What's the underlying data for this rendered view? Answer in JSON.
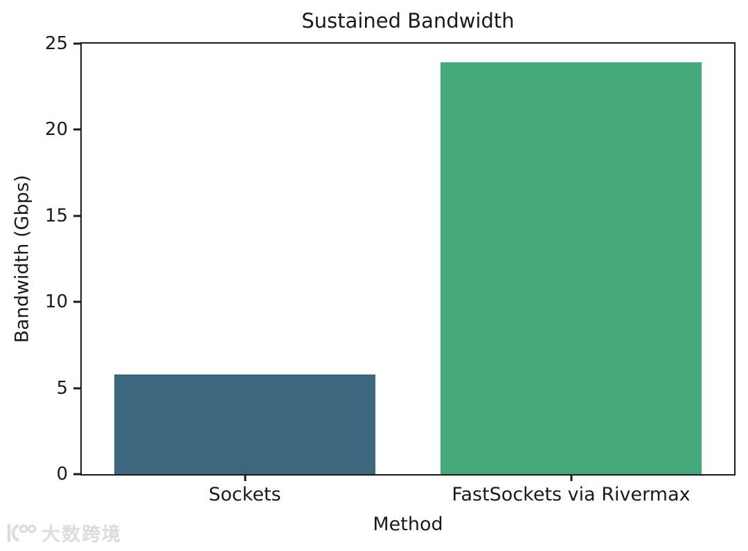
{
  "figure": {
    "background_color": "#ffffff",
    "spine_color": "#1a1a1a",
    "text_color": "#1a1a1a"
  },
  "chart_data": {
    "type": "bar",
    "title": "Sustained Bandwidth",
    "xlabel": "Method",
    "ylabel": "Bandwidth (Gbps)",
    "categories": [
      "Sockets",
      "FastSockets via Rivermax"
    ],
    "values": [
      5.8,
      23.9
    ],
    "bar_colors": [
      "#3d667f",
      "#46a97b"
    ],
    "ylim": [
      0,
      25
    ],
    "yticks": [
      0,
      5,
      10,
      15,
      20,
      25
    ],
    "grid": false,
    "legend": false,
    "bar_width_fraction": 0.8
  },
  "watermark": {
    "text": "大数跨境",
    "color": "#dcdcdc"
  }
}
